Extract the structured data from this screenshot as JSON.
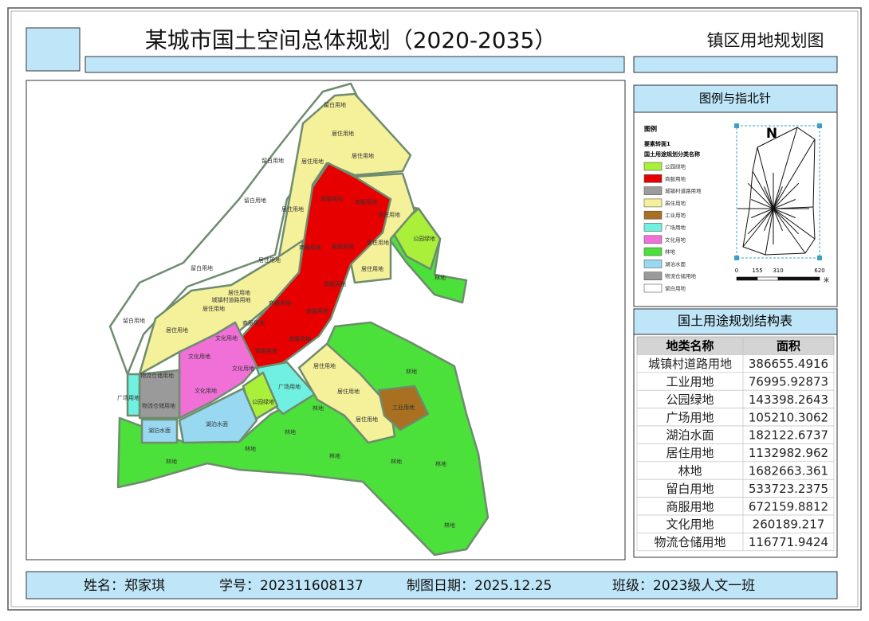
{
  "header": {
    "title": "某城市国土空间总体规划（2020-2035）",
    "subtitle": "镇区用地规划图"
  },
  "legend_panel": {
    "title": "图例与指北针",
    "heading": "图例",
    "layer": "要素转面1",
    "field": "国土用途规划分类名称",
    "items": [
      {
        "label": "公园绿地",
        "color": "#aaf03a"
      },
      {
        "label": "商服用地",
        "color": "#e60000"
      },
      {
        "label": "城镇村道路用地",
        "color": "#9c9c9c"
      },
      {
        "label": "居住用地",
        "color": "#f5f09a"
      },
      {
        "label": "工业用地",
        "color": "#a87020"
      },
      {
        "label": "广场用地",
        "color": "#70f0e0"
      },
      {
        "label": "文化用地",
        "color": "#f070d8"
      },
      {
        "label": "林地",
        "color": "#4ce03a"
      },
      {
        "label": "湖泊水面",
        "color": "#98d8f0"
      },
      {
        "label": "物流仓储用地",
        "color": "#9a9a9a"
      },
      {
        "label": "留白用地",
        "color": "#ffffff"
      }
    ],
    "north": "N",
    "scale_ticks": [
      0,
      155,
      310,
      620
    ],
    "scale_unit": "米"
  },
  "table": {
    "title": "国土用途规划结构表",
    "columns": [
      "地类名称",
      "面积"
    ],
    "rows": [
      [
        "城镇村道路用地",
        386655.4916
      ],
      [
        "工业用地",
        76995.92873
      ],
      [
        "公园绿地",
        143398.2643
      ],
      [
        "广场用地",
        105210.3062
      ],
      [
        "湖泊水面",
        182122.6737
      ],
      [
        "居住用地",
        1132982.962
      ],
      [
        "林地",
        1682663.361
      ],
      [
        "留白用地",
        533723.2375
      ],
      [
        "商服用地",
        672159.8812
      ],
      [
        "文化用地",
        260189.217
      ],
      [
        "物流仓储用地",
        116771.9424
      ]
    ]
  },
  "footer": [
    "姓名：郑家琪",
    "学号：202311608137",
    "制图日期：2025.12.25",
    "班级：2023级人文一班"
  ],
  "map": {
    "labels": [
      "留白用地",
      "留白用地",
      "留白用地",
      "留白用地",
      "留白用地",
      "居住用地",
      "居住用地",
      "居住用地",
      "居住用地",
      "居住用地",
      "居住用地",
      "居住用地",
      "居住用地",
      "居住用地",
      "居住用地",
      "居住用地",
      "居住用地",
      "居住用地",
      "居住用地",
      "商服用地",
      "商服用地",
      "商服用地",
      "商服用地",
      "商服用地",
      "商服用地",
      "商服用地",
      "商服用地",
      "商服用地",
      "商服用地",
      "城镇村道路用地",
      "文化用地",
      "文化用地",
      "文化用地",
      "文化用地",
      "物流仓储用地",
      "物流仓储用地",
      "广场用地",
      "广场用地",
      "公园绿地",
      "公园绿地",
      "湖泊水面",
      "湖泊水面",
      "工业用地",
      "林地",
      "林地",
      "林地",
      "林地",
      "林地",
      "林地",
      "林地",
      "林地",
      "林地",
      "林地"
    ]
  }
}
